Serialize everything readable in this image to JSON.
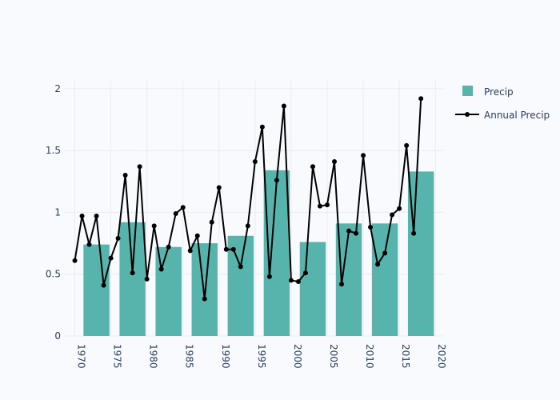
{
  "chart_data": {
    "type": "bar+line",
    "title": "",
    "xlabel": "",
    "ylabel": "",
    "xlim": [
      1968.5,
      2021.2
    ],
    "ylim": [
      0,
      2.07
    ],
    "x_ticks": [
      "1970",
      "1975",
      "1980",
      "1985",
      "1990",
      "1995",
      "2000",
      "2005",
      "2010",
      "2015",
      "2020"
    ],
    "x_tick_values": [
      1970,
      1975,
      1980,
      1985,
      1990,
      1995,
      2000,
      2005,
      2010,
      2015,
      2020
    ],
    "y_ticks": [
      "0",
      "0.5",
      "1",
      "1.5",
      "2"
    ],
    "y_tick_values": [
      0,
      0.5,
      1,
      1.5,
      2
    ],
    "grid": true,
    "legend_position": "top-right",
    "colors": {
      "bar": "#57b4ac",
      "line": "#000000",
      "grid": "#e8ecf2",
      "text": "#2a3f5f"
    },
    "series": [
      {
        "name": "Precip",
        "type": "bar",
        "x": [
          1973,
          1978,
          1983,
          1988,
          1993,
          1998,
          2003,
          2008,
          2013,
          2018
        ],
        "values": [
          0.74,
          0.92,
          0.72,
          0.75,
          0.81,
          1.34,
          0.76,
          0.91,
          0.91,
          1.33
        ]
      },
      {
        "name": "Annual Precip",
        "type": "line",
        "x": [
          1970,
          1971,
          1972,
          1973,
          1974,
          1975,
          1976,
          1977,
          1978,
          1979,
          1980,
          1981,
          1982,
          1983,
          1984,
          1985,
          1986,
          1987,
          1988,
          1989,
          1990,
          1991,
          1992,
          1993,
          1994,
          1995,
          1996,
          1997,
          1998,
          1999,
          2000,
          2001,
          2002,
          2003,
          2004,
          2005,
          2006,
          2007,
          2008,
          2009,
          2010,
          2011,
          2012,
          2013,
          2014,
          2015,
          2016,
          2017,
          2018
        ],
        "values": [
          0.61,
          0.97,
          0.74,
          0.97,
          0.41,
          0.63,
          0.79,
          1.3,
          0.51,
          1.37,
          0.46,
          0.89,
          0.54,
          0.72,
          0.99,
          1.04,
          0.69,
          0.81,
          0.3,
          0.92,
          1.2,
          0.7,
          0.7,
          0.56,
          0.89,
          1.41,
          1.69,
          0.48,
          1.26,
          1.86,
          0.45,
          0.44,
          0.51,
          1.37,
          1.05,
          1.06,
          1.41,
          0.42,
          0.85,
          0.83,
          1.46,
          0.88,
          0.58,
          0.67,
          0.98,
          1.03,
          1.54,
          0.83,
          1.92
        ]
      }
    ]
  }
}
